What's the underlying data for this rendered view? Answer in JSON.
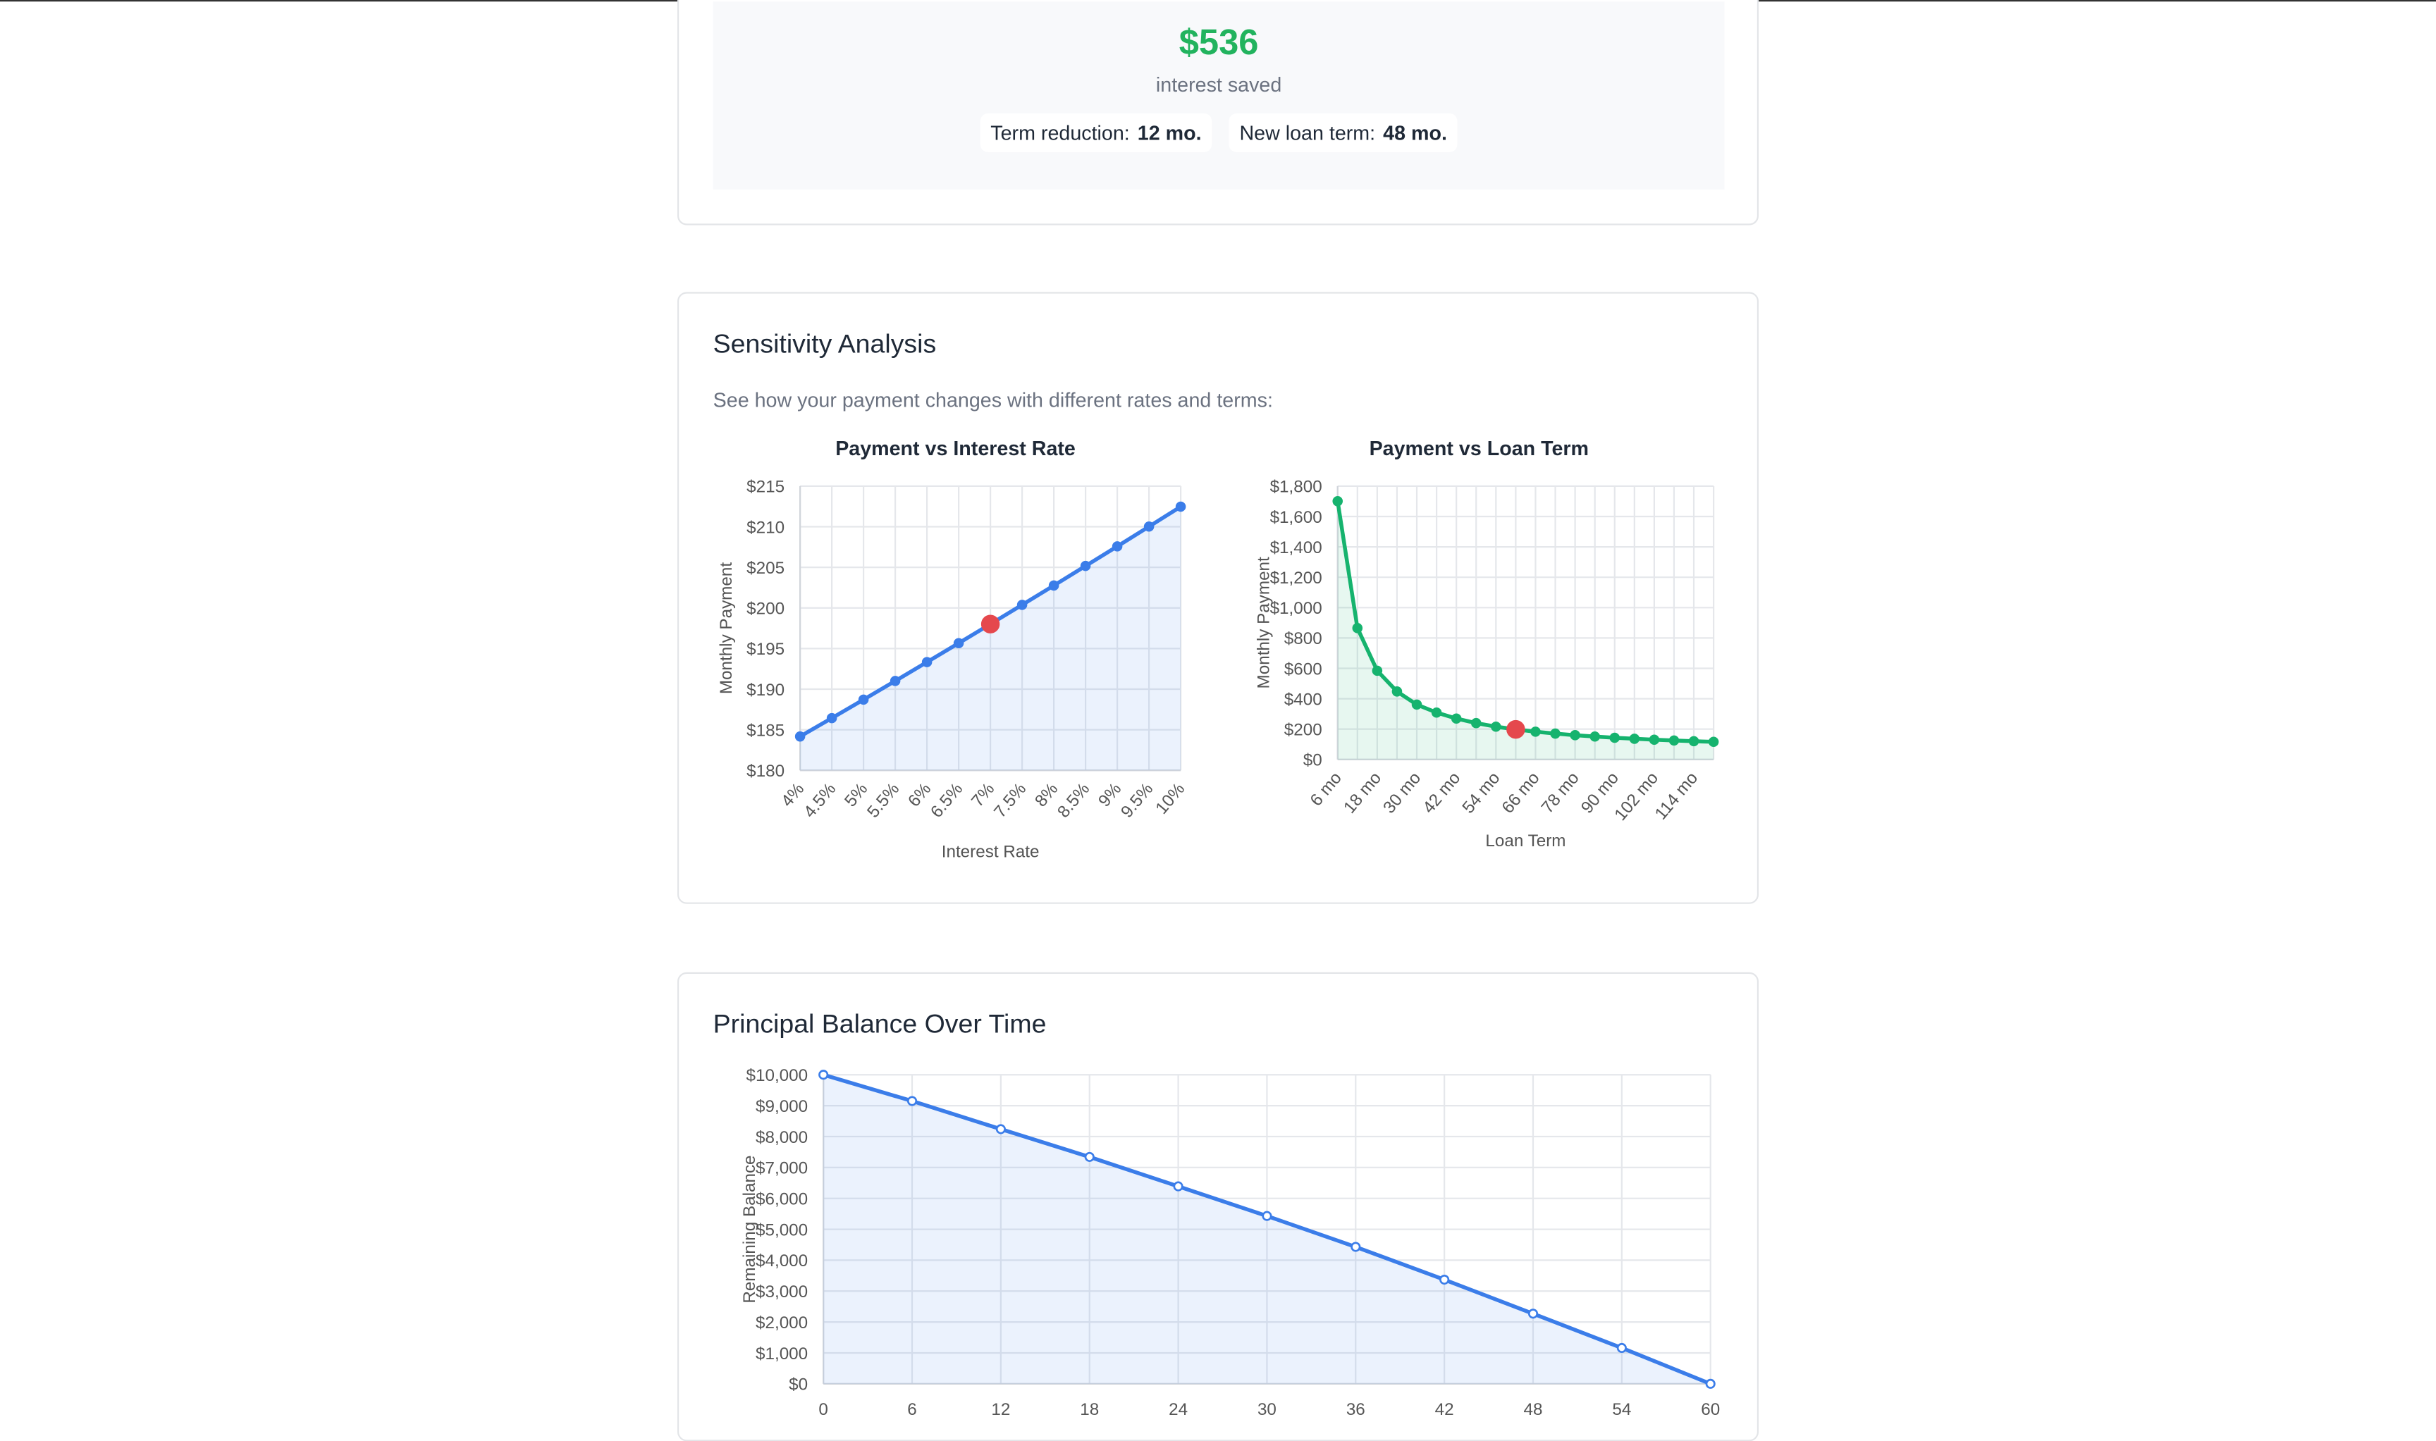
{
  "summary": {
    "amount": "$536",
    "caption": "interest saved",
    "term_reduction_label": "Term reduction:",
    "term_reduction": "12 mo.",
    "new_term_label": "New loan term:",
    "new_term": "48 mo."
  },
  "sensitivity": {
    "title": "Sensitivity Analysis",
    "subtitle": "See how your payment changes with different rates and terms:"
  },
  "balance": {
    "title": "Principal Balance Over Time"
  },
  "chart_data": [
    {
      "type": "line",
      "title": "Payment vs Interest Rate",
      "x_label": "Interest Rate",
      "y_label": "Monthly Payment",
      "color": "#3b7de9",
      "highlight_color": "#e5484d",
      "highlight_index": 6,
      "categories": [
        "4%",
        "4.5%",
        "5%",
        "5.5%",
        "6%",
        "6.5%",
        "7%",
        "7.5%",
        "8%",
        "8.5%",
        "9%",
        "9.5%",
        "10%"
      ],
      "values": [
        184.17,
        186.43,
        188.71,
        191.01,
        193.33,
        195.66,
        198.01,
        200.38,
        202.76,
        205.17,
        207.58,
        210.02,
        212.47
      ],
      "ylim": [
        180,
        215
      ],
      "yticks": [
        {
          "value": 180,
          "label": "$180"
        },
        {
          "value": 185,
          "label": "$185"
        },
        {
          "value": 190,
          "label": "$190"
        },
        {
          "value": 195,
          "label": "$195"
        },
        {
          "value": 200,
          "label": "$200"
        },
        {
          "value": 205,
          "label": "$205"
        },
        {
          "value": 210,
          "label": "$210"
        },
        {
          "value": 215,
          "label": "$215"
        }
      ],
      "grid": true
    },
    {
      "type": "line",
      "title": "Payment vs Loan Term",
      "x_label": "Loan Term",
      "y_label": "Monthly Payment",
      "color": "#16b36e",
      "highlight_color": "#e5484d",
      "highlight_index": 9,
      "categories": [
        "6 mo",
        null,
        "18 mo",
        null,
        "30 mo",
        null,
        "42 mo",
        null,
        "54 mo",
        null,
        "66 mo",
        null,
        "78 mo",
        null,
        "90 mo",
        null,
        "102 mo",
        null,
        "114 mo",
        null
      ],
      "values": [
        1700.6,
        865.3,
        584.4,
        447.7,
        361.4,
        308.8,
        269.4,
        239.5,
        216.0,
        198.0,
        182.8,
        170.5,
        160.0,
        150.9,
        143.1,
        136.3,
        130.3,
        125.0,
        120.2,
        116.1
      ],
      "ylim": [
        0,
        1800
      ],
      "yticks": [
        {
          "value": 0,
          "label": "$0"
        },
        {
          "value": 200,
          "label": "$200"
        },
        {
          "value": 400,
          "label": "$400"
        },
        {
          "value": 600,
          "label": "$600"
        },
        {
          "value": 800,
          "label": "$800"
        },
        {
          "value": 1000,
          "label": "$1,000"
        },
        {
          "value": 1200,
          "label": "$1,200"
        },
        {
          "value": 1400,
          "label": "$1,400"
        },
        {
          "value": 1600,
          "label": "$1,600"
        },
        {
          "value": 1800,
          "label": "$1,800"
        }
      ],
      "grid": true
    },
    {
      "type": "line",
      "y_label": "Remaining Balance",
      "color": "#3b7de9",
      "hollow": true,
      "categories": [
        0,
        6,
        12,
        18,
        24,
        30,
        36,
        42,
        48,
        54,
        60
      ],
      "values": [
        10000,
        9150,
        8240,
        7340,
        6390,
        5430,
        4430,
        3370,
        2270,
        1160,
        0
      ],
      "ylim": [
        0,
        10000
      ],
      "yticks": [
        {
          "value": 0,
          "label": "$0"
        },
        {
          "value": 1000,
          "label": "$1,000"
        },
        {
          "value": 2000,
          "label": "$2,000"
        },
        {
          "value": 3000,
          "label": "$3,000"
        },
        {
          "value": 4000,
          "label": "$4,000"
        },
        {
          "value": 5000,
          "label": "$5,000"
        },
        {
          "value": 6000,
          "label": "$6,000"
        },
        {
          "value": 7000,
          "label": "$7,000"
        },
        {
          "value": 8000,
          "label": "$8,000"
        },
        {
          "value": 9000,
          "label": "$9,000"
        },
        {
          "value": 10000,
          "label": "$10,000"
        }
      ],
      "grid": true
    }
  ]
}
